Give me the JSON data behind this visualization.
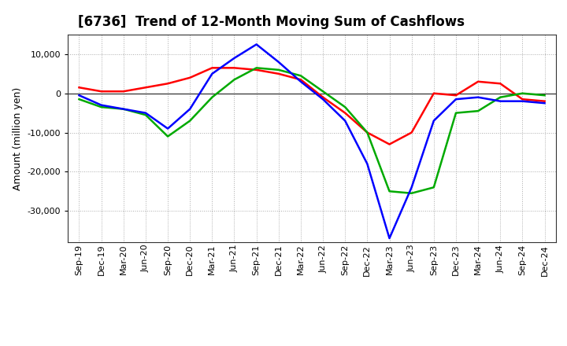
{
  "title": "[6736]  Trend of 12-Month Moving Sum of Cashflows",
  "ylabel": "Amount (million yen)",
  "x_labels": [
    "Sep-19",
    "Dec-19",
    "Mar-20",
    "Jun-20",
    "Sep-20",
    "Dec-20",
    "Mar-21",
    "Jun-21",
    "Sep-21",
    "Dec-21",
    "Mar-22",
    "Jun-22",
    "Sep-22",
    "Dec-22",
    "Mar-23",
    "Jun-23",
    "Sep-23",
    "Dec-23",
    "Mar-24",
    "Jun-24",
    "Sep-24",
    "Dec-24"
  ],
  "operating": [
    1500,
    500,
    500,
    1500,
    2500,
    4000,
    6500,
    6500,
    6000,
    5000,
    3500,
    -1000,
    -5000,
    -10000,
    -13000,
    -10000,
    0,
    -500,
    3000,
    2500,
    -1500,
    -2000
  ],
  "investing": [
    -1500,
    -3500,
    -4000,
    -5500,
    -11000,
    -7000,
    -1000,
    3500,
    6500,
    6000,
    4500,
    500,
    -3500,
    -10000,
    -25000,
    -25500,
    -24000,
    -5000,
    -4500,
    -1000,
    0,
    -500
  ],
  "free": [
    -500,
    -3000,
    -4000,
    -5000,
    -9000,
    -4000,
    5000,
    9000,
    12500,
    8000,
    3000,
    -1500,
    -7000,
    -18000,
    -37000,
    -24000,
    -7000,
    -1500,
    -1000,
    -2000,
    -2000,
    -2500
  ],
  "ylim": [
    -38000,
    15000
  ],
  "yticks": [
    -30000,
    -20000,
    -10000,
    0,
    10000
  ],
  "colors": {
    "operating": "#ff0000",
    "investing": "#00aa00",
    "free": "#0000ff"
  },
  "background_color": "#ffffff",
  "grid_color": "#aaaaaa",
  "title_fontsize": 12,
  "axis_fontsize": 9,
  "tick_fontsize": 8,
  "line_width": 1.8
}
